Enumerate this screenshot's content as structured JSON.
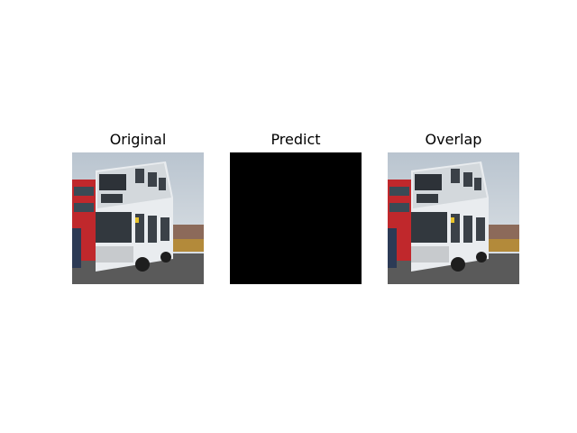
{
  "panels": [
    {
      "title": "Original"
    },
    {
      "title": "Predict"
    },
    {
      "title": "Overlap"
    }
  ],
  "colors": {
    "background": "#ffffff",
    "predict_mask": "#000000"
  }
}
